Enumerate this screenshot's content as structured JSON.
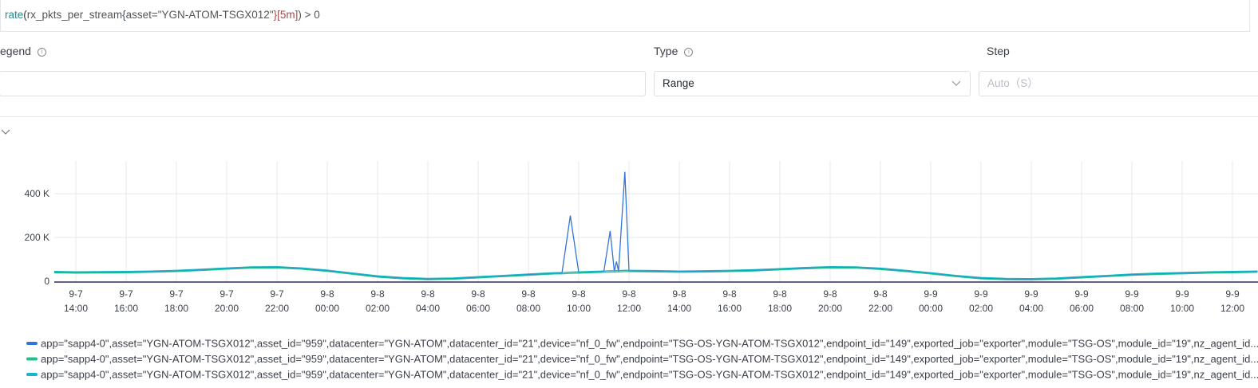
{
  "query": [
    "rate",
    "(",
    "rx_pkts_per_stream",
    "{",
    "asset=",
    "\"YGN-ATOM-TSGX012\"",
    "}[5m]",
    ") > 0"
  ],
  "form": {
    "legend_label": "egend",
    "type_label": "Type",
    "type_value": "Range",
    "step_label": "Step",
    "step_placeholder": "Auto（S）"
  },
  "chart_data": {
    "type": "line",
    "x": [
      "9-7 13:00",
      "9-7 14:00",
      "9-7 15:00",
      "9-7 16:00",
      "9-7 17:00",
      "9-7 18:00",
      "9-7 19:00",
      "9-7 20:00",
      "9-7 21:00",
      "9-7 22:00",
      "9-7 23:00",
      "9-8 00:00",
      "9-8 01:00",
      "9-8 02:00",
      "9-8 03:00",
      "9-8 04:00",
      "9-8 05:00",
      "9-8 06:00",
      "9-8 07:00",
      "9-8 08:00",
      "9-8 09:00",
      "9-8 09:20",
      "9-8 09:40",
      "9-8 10:00",
      "9-8 11:00",
      "9-8 11:15",
      "9-8 11:25",
      "9-8 11:30",
      "9-8 11:35",
      "9-8 11:50",
      "9-8 12:00",
      "9-8 13:00",
      "9-8 14:00",
      "9-8 15:00",
      "9-8 16:00",
      "9-8 17:00",
      "9-8 18:00",
      "9-8 19:00",
      "9-8 20:00",
      "9-8 21:00",
      "9-8 22:00",
      "9-8 23:00",
      "9-9 00:00",
      "9-9 01:00",
      "9-9 02:00",
      "9-9 03:00",
      "9-9 04:00",
      "9-9 05:00",
      "9-9 06:00",
      "9-9 07:00",
      "9-9 08:00",
      "9-9 09:00",
      "9-9 10:00",
      "9-9 11:00",
      "9-9 12:00",
      "9-9 13:00"
    ],
    "xticks": [
      "9-7 14:00",
      "9-7 16:00",
      "9-7 18:00",
      "9-7 20:00",
      "9-7 22:00",
      "9-8 00:00",
      "9-8 02:00",
      "9-8 04:00",
      "9-8 06:00",
      "9-8 08:00",
      "9-8 10:00",
      "9-8 12:00",
      "9-8 14:00",
      "9-8 16:00",
      "9-8 18:00",
      "9-8 20:00",
      "9-8 22:00",
      "9-9 00:00",
      "9-9 02:00",
      "9-9 04:00",
      "9-9 06:00",
      "9-9 08:00",
      "9-9 10:00",
      "9-9 12:00"
    ],
    "ylim": [
      0,
      550000
    ],
    "yticks": [
      0,
      {
        "value": 200000,
        "label": "200 K"
      },
      {
        "value": 400000,
        "label": "400 K"
      }
    ],
    "grid": true,
    "series": [
      {
        "name": "app=\"sapp4-0\",asset=\"YGN-ATOM-TSGX012\",asset_id=\"959\",datacenter=\"YGN-ATOM\",datacenter_id=\"21\",device=\"nf_0_fw\",endpoint=\"TSG-OS-YGN-ATOM-TSGX012\",endpoint_id=\"149\",exported_job=\"exporter\",module=\"TSG-OS\",module_id=\"19\",nz_agent_id...",
        "color": "#3274d9",
        "values": [
          42000,
          40000,
          41000,
          42000,
          44000,
          47000,
          52000,
          58000,
          63000,
          64000,
          58000,
          48000,
          35000,
          22000,
          14000,
          10000,
          12000,
          18000,
          24000,
          30000,
          36000,
          37000,
          300000,
          40000,
          44000,
          230000,
          45000,
          90000,
          46000,
          500000,
          47000,
          46000,
          44000,
          45000,
          47000,
          50000,
          55000,
          60000,
          64000,
          63000,
          57000,
          47000,
          36000,
          24000,
          14000,
          10000,
          9000,
          12000,
          18000,
          24000,
          30000,
          34000,
          37000,
          40000,
          42000,
          44000
        ]
      },
      {
        "name": "app=\"sapp4-0\",asset=\"YGN-ATOM-TSGX012\",asset_id=\"959\",datacenter=\"YGN-ATOM\",datacenter_id=\"21\",device=\"nf_0_fw\",endpoint=\"TSG-OS-YGN-ATOM-TSGX012\",endpoint_id=\"149\",exported_job=\"exporter\",module=\"TSG-OS\",module_id=\"19\",nz_agent_id...",
        "color": "#21c08f",
        "values": [
          39000,
          37000,
          38000,
          39000,
          41000,
          44000,
          49000,
          55000,
          60000,
          61000,
          55000,
          45000,
          32000,
          19000,
          11000,
          7000,
          9000,
          15000,
          21000,
          27000,
          33000,
          34000,
          36000,
          37000,
          41000,
          42000,
          42000,
          43000,
          43000,
          44000,
          44000,
          43000,
          41000,
          42000,
          44000,
          47000,
          52000,
          57000,
          61000,
          60000,
          54000,
          44000,
          33000,
          21000,
          11000,
          7000,
          6000,
          9000,
          15000,
          21000,
          27000,
          31000,
          34000,
          37000,
          39000,
          41000
        ]
      },
      {
        "name": "app=\"sapp4-0\",asset=\"YGN-ATOM-TSGX012\",asset_id=\"959\",datacenter=\"YGN-ATOM\",datacenter_id=\"21\",device=\"nf_0_fw\",endpoint=\"TSG-OS-YGN-ATOM-TSGX012\",endpoint_id=\"149\",exported_job=\"exporter\",module=\"TSG-OS\",module_id=\"19\",nz_agent_id...",
        "color": "#18b4c9",
        "values": [
          45000,
          43000,
          44000,
          45000,
          47000,
          50000,
          55000,
          61000,
          66000,
          67000,
          61000,
          51000,
          38000,
          25000,
          17000,
          13000,
          15000,
          21000,
          27000,
          33000,
          39000,
          40000,
          42000,
          43000,
          47000,
          48000,
          48000,
          49000,
          49000,
          50000,
          50000,
          49000,
          47000,
          48000,
          50000,
          53000,
          58000,
          63000,
          67000,
          66000,
          60000,
          50000,
          39000,
          27000,
          17000,
          13000,
          12000,
          15000,
          21000,
          27000,
          33000,
          37000,
          40000,
          43000,
          45000,
          47000
        ]
      }
    ]
  }
}
